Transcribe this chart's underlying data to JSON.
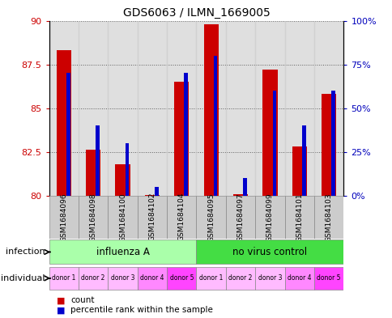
{
  "title": "GDS6063 / ILMN_1669005",
  "samples": [
    "GSM1684096",
    "GSM1684098",
    "GSM1684100",
    "GSM1684102",
    "GSM1684104",
    "GSM1684095",
    "GSM1684097",
    "GSM1684099",
    "GSM1684101",
    "GSM1684103"
  ],
  "red_values": [
    88.3,
    82.6,
    81.8,
    80.05,
    86.5,
    89.8,
    80.1,
    87.2,
    82.8,
    85.8
  ],
  "blue_values": [
    0.7,
    0.4,
    0.3,
    0.05,
    0.7,
    0.8,
    0.1,
    0.6,
    0.4,
    0.6
  ],
  "ymin": 80,
  "ymax": 90,
  "yticks": [
    80,
    82.5,
    85,
    87.5,
    90
  ],
  "ytick_labels": [
    "80",
    "82.5",
    "85",
    "87.5",
    "90"
  ],
  "y2ticks": [
    0,
    0.25,
    0.5,
    0.75,
    1.0
  ],
  "y2tick_labels": [
    "0%",
    "25%",
    "50%",
    "75%",
    "100%"
  ],
  "infection_groups": [
    {
      "label": "influenza A",
      "start": 0,
      "end": 5,
      "color": "#AAFFAA"
    },
    {
      "label": "no virus control",
      "start": 5,
      "end": 10,
      "color": "#44DD44"
    }
  ],
  "individual_labels": [
    "donor 1",
    "donor 2",
    "donor 3",
    "donor 4",
    "donor 5",
    "donor 1",
    "donor 2",
    "donor 3",
    "donor 4",
    "donor 5"
  ],
  "donor_colors": [
    "#FFBBFF",
    "#FFBBFF",
    "#FFBBFF",
    "#FF88FF",
    "#FF44FF",
    "#FFBBFF",
    "#FFBBFF",
    "#FFBBFF",
    "#FF88FF",
    "#FF44FF"
  ],
  "bar_width": 0.5,
  "red_color": "#CC0000",
  "blue_color": "#0000CC",
  "tick_color_left": "#CC0000",
  "tick_color_right": "#0000BB",
  "sample_bg_color": "#CCCCCC",
  "plot_bg_color": "#F0F0F0"
}
